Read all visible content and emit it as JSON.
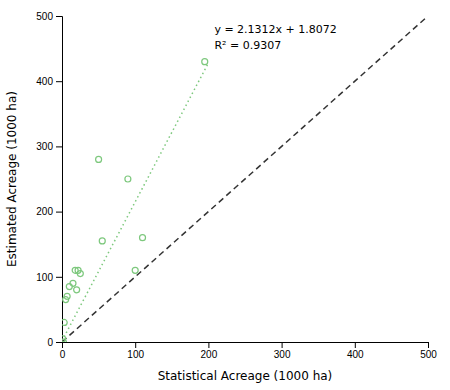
{
  "chart_data": {
    "type": "scatter",
    "xlabel": "Statistical Acreage (1000 ha)",
    "ylabel": "Estimated Acreage (1000 ha)",
    "xlim": [
      0,
      500
    ],
    "ylim": [
      0,
      500
    ],
    "xticks": [
      0,
      100,
      200,
      300,
      400,
      500
    ],
    "yticks": [
      0,
      100,
      200,
      300,
      400,
      500
    ],
    "grid": false,
    "series": [
      {
        "type": "scatter",
        "color": "#7dc87d",
        "marker": "open-circle",
        "x": [
          1,
          2,
          3,
          5,
          7,
          10,
          15,
          18,
          20,
          22,
          25,
          50,
          55,
          90,
          100,
          110,
          195
        ],
        "values": [
          5,
          0,
          30,
          65,
          70,
          85,
          90,
          110,
          80,
          110,
          105,
          280,
          155,
          250,
          110,
          160,
          430
        ]
      },
      {
        "type": "line",
        "color": "#7dc87d",
        "line_style": "dotted",
        "x": [
          0,
          200
        ],
        "values": [
          1.8072,
          428.0472
        ]
      },
      {
        "type": "line",
        "color": "#333333",
        "line_style": "dashed",
        "x": [
          0,
          500
        ],
        "values": [
          0,
          500
        ]
      }
    ],
    "annotations": [
      "y = 2.1312x + 1.8072",
      "R² = 0.9307"
    ]
  }
}
